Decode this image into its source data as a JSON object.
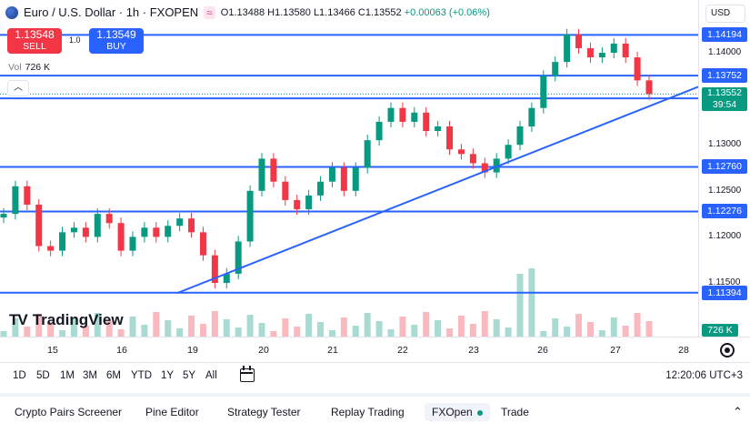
{
  "legend": {
    "title": "Euro / U.S. Dollar · 1h · FXOPEN",
    "open": "O1.13488",
    "high": "H1.13580",
    "low": "L1.13466",
    "close": "C1.13552",
    "change": "+0.00063 (+0.06%)"
  },
  "trade": {
    "sell_price": "1.13548",
    "sell_label": "SELL",
    "buy_price": "1.13549",
    "buy_label": "BUY",
    "spread": "1.0"
  },
  "volume": {
    "label": "Vol",
    "value": "726 K",
    "axis_value": "726 K"
  },
  "price_scale": {
    "currency": "USD",
    "ticks": [
      "1.14000",
      "1.13000",
      "1.12500",
      "1.12000",
      "1.11500"
    ],
    "levels": [
      "1.14194",
      "1.13752",
      "1.13505",
      "1.12760",
      "1.12276",
      "1.11394"
    ],
    "current_price": "1.13552",
    "countdown": "39:54"
  },
  "time_axis": [
    "15",
    "16",
    "19",
    "20",
    "21",
    "22",
    "23",
    "26",
    "27",
    "28"
  ],
  "ranges": [
    "1D",
    "5D",
    "1M",
    "3M",
    "6M",
    "YTD",
    "1Y",
    "5Y",
    "All"
  ],
  "clock": "12:20:06 UTC+3",
  "bottom_tabs": [
    "Crypto Pairs Screener",
    "Pine Editor",
    "Strategy Tester",
    "Replay Trading",
    "FXOpen",
    "Trade"
  ],
  "logo": {
    "name": "TradingView"
  },
  "colors": {
    "up": "#089981",
    "down": "#f23645",
    "level": "#2962ff",
    "accent": "#2962ff"
  },
  "chart_data": {
    "type": "candlestick",
    "symbol": "EURUSD",
    "interval": "1h",
    "support_resistance": [
      1.14194,
      1.13752,
      1.13505,
      1.1276,
      1.12276,
      1.11394
    ],
    "trendline": {
      "from": {
        "x": "19",
        "y": 1.1139
      },
      "to": {
        "x": "28",
        "y": 1.1363
      }
    },
    "close_path": [
      [
        "15",
        1.1225
      ],
      [
        "15",
        1.1255
      ],
      [
        "15",
        1.1235
      ],
      [
        "15",
        1.119
      ],
      [
        "15",
        1.1185
      ],
      [
        "15",
        1.1205
      ],
      [
        "15",
        1.121
      ],
      [
        "15",
        1.12
      ],
      [
        "15",
        1.1225
      ],
      [
        "16",
        1.1215
      ],
      [
        "16",
        1.1185
      ],
      [
        "16",
        1.12
      ],
      [
        "16",
        1.121
      ],
      [
        "16",
        1.12
      ],
      [
        "16",
        1.1212
      ],
      [
        "16",
        1.122
      ],
      [
        "16",
        1.1205
      ],
      [
        "19",
        1.118
      ],
      [
        "19",
        1.115
      ],
      [
        "19",
        1.116
      ],
      [
        "19",
        1.1195
      ],
      [
        "19",
        1.125
      ],
      [
        "19",
        1.1285
      ],
      [
        "19",
        1.126
      ],
      [
        "20",
        1.124
      ],
      [
        "20",
        1.123
      ],
      [
        "20",
        1.1245
      ],
      [
        "20",
        1.126
      ],
      [
        "20",
        1.1275
      ],
      [
        "20",
        1.125
      ],
      [
        "21",
        1.1275
      ],
      [
        "21",
        1.1305
      ],
      [
        "21",
        1.1325
      ],
      [
        "21",
        1.134
      ],
      [
        "21",
        1.1325
      ],
      [
        "22",
        1.1335
      ],
      [
        "22",
        1.1315
      ],
      [
        "22",
        1.132
      ],
      [
        "22",
        1.1295
      ],
      [
        "22",
        1.129
      ],
      [
        "23",
        1.128
      ],
      [
        "23",
        1.127
      ],
      [
        "23",
        1.1285
      ],
      [
        "23",
        1.13
      ],
      [
        "23",
        1.132
      ],
      [
        "23",
        1.134
      ],
      [
        "26",
        1.1375
      ],
      [
        "26",
        1.139
      ],
      [
        "26",
        1.142
      ],
      [
        "26",
        1.1405
      ],
      [
        "26",
        1.1395
      ],
      [
        "27",
        1.14
      ],
      [
        "27",
        1.141
      ],
      [
        "27",
        1.1395
      ],
      [
        "27",
        1.137
      ],
      [
        "27",
        1.1355
      ]
    ]
  }
}
